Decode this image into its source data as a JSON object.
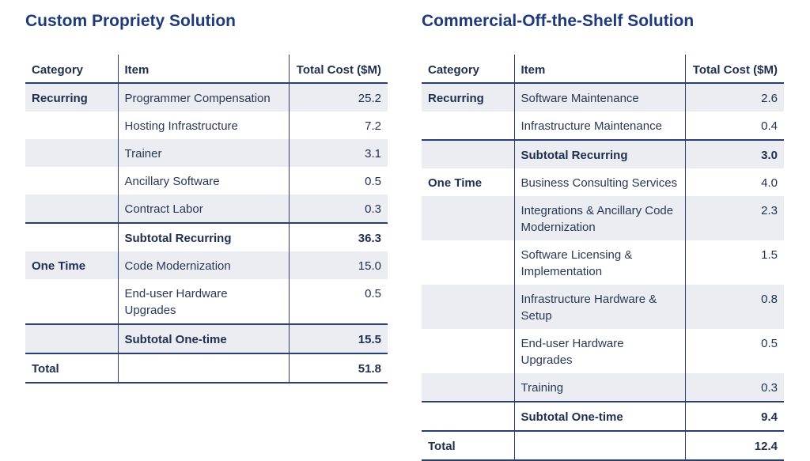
{
  "custom": {
    "title": "Custom Propriety Solution",
    "headers": {
      "category": "Category",
      "item": "Item",
      "cost": "Total Cost ($M)"
    },
    "rows": [
      {
        "category": "Recurring",
        "item": "Programmer Compensation",
        "cost": "25.2"
      },
      {
        "category": "",
        "item": "Hosting Infrastructure",
        "cost": "7.2"
      },
      {
        "category": "",
        "item": "Trainer",
        "cost": "3.1"
      },
      {
        "category": "",
        "item": "Ancillary Software",
        "cost": "0.5"
      },
      {
        "category": "",
        "item": "Contract Labor",
        "cost": "0.3"
      },
      {
        "category": "",
        "item": "Subtotal Recurring",
        "cost": "36.3"
      },
      {
        "category": "One Time",
        "item": "Code Modernization",
        "cost": "15.0"
      },
      {
        "category": "",
        "item": "End-user Hardware Upgrades",
        "cost": "0.5"
      },
      {
        "category": "",
        "item": "Subtotal One-time",
        "cost": "15.5"
      },
      {
        "category": "Total",
        "item": "",
        "cost": "51.8"
      }
    ]
  },
  "cots": {
    "title": "Commercial-Off-the-Shelf Solution",
    "headers": {
      "category": "Category",
      "item": "Item",
      "cost": "Total Cost ($M)"
    },
    "rows": [
      {
        "category": "Recurring",
        "item": "Software Maintenance",
        "cost": "2.6"
      },
      {
        "category": "",
        "item": "Infrastructure Maintenance",
        "cost": "0.4"
      },
      {
        "category": "",
        "item": "Subtotal Recurring",
        "cost": "3.0"
      },
      {
        "category": "One Time",
        "item": "Business Consulting Services",
        "cost": "4.0"
      },
      {
        "category": "",
        "item": "Integrations & Ancillary Code Modernization",
        "cost": "2.3"
      },
      {
        "category": "",
        "item": "Software Licensing & Implementation",
        "cost": "1.5"
      },
      {
        "category": "",
        "item": "Infrastructure Hardware & Setup",
        "cost": "0.8"
      },
      {
        "category": "",
        "item": "End-user Hardware Upgrades",
        "cost": "0.5"
      },
      {
        "category": "",
        "item": "Training",
        "cost": "0.3"
      },
      {
        "category": "",
        "item": "Subtotal One-time",
        "cost": "9.4"
      },
      {
        "category": "Total",
        "item": "",
        "cost": "12.4"
      }
    ]
  }
}
